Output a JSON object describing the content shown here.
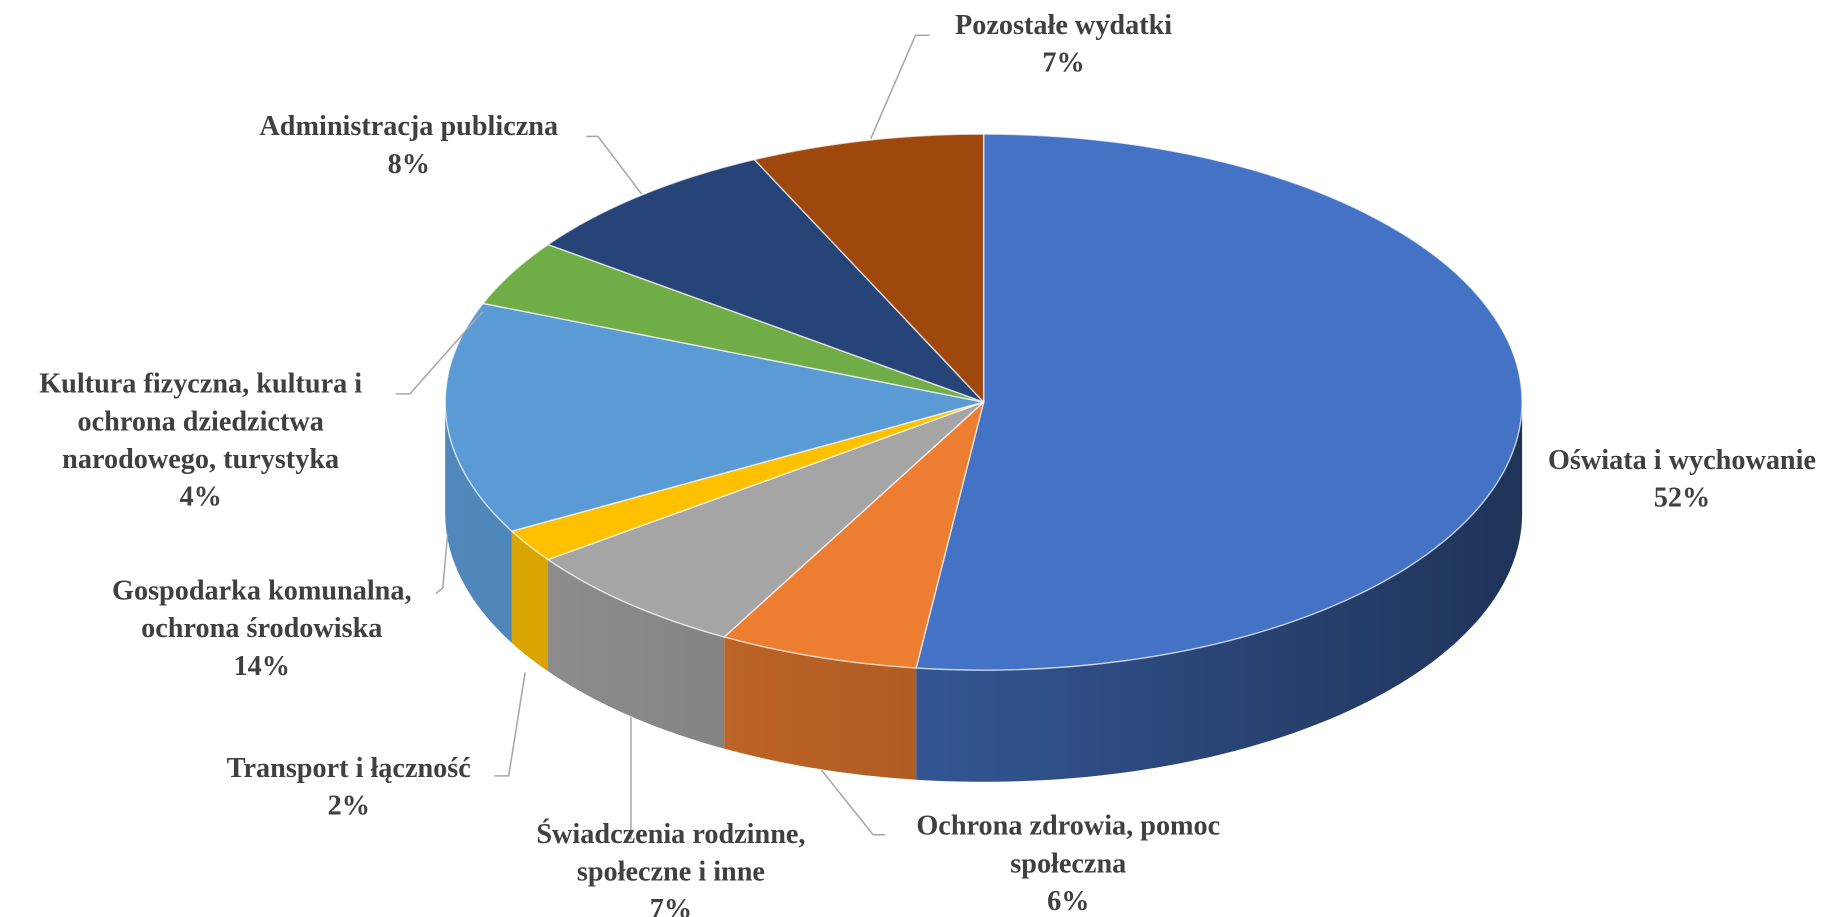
{
  "chart_data": {
    "type": "pie",
    "categories": [
      "Oświata i wychowanie",
      "Ochrona zdrowia, pomoc społeczna",
      "Świadczenia rodzinne, społeczne i inne",
      "Transport i łączność",
      "Gospodarka komunalna, ochrona środowiska",
      "Kultura fizyczna, kultura i ochrona dziedzictwa narodowego, turystyka",
      "Administracja publiczna",
      "Pozostałe wydatki"
    ],
    "values": [
      52,
      6,
      7,
      2,
      14,
      4,
      8,
      7
    ],
    "value_labels": [
      "52%",
      "6%",
      "7%",
      "2%",
      "14%",
      "4%",
      "8%",
      "7%"
    ],
    "colors": [
      "#4472c4",
      "#ed7d31",
      "#a5a5a5",
      "#ffc000",
      "#5b9bd5",
      "#70ad47",
      "#264478",
      "#9e480e"
    ]
  }
}
